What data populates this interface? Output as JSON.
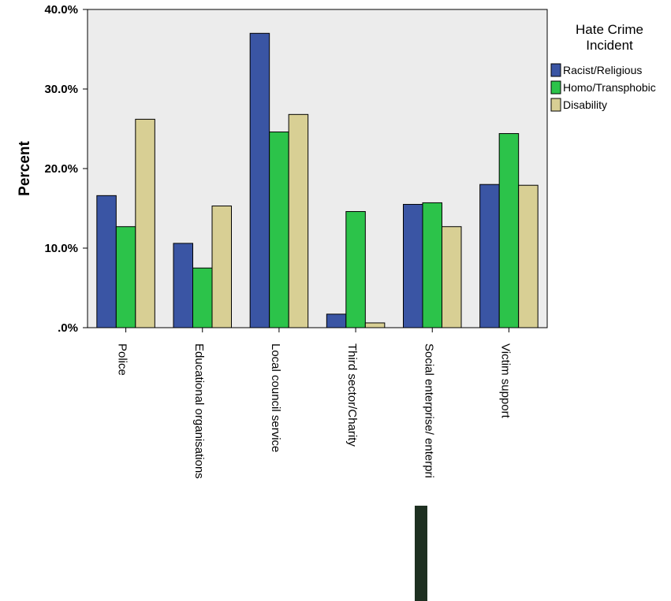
{
  "chart_data": {
    "type": "bar",
    "title": "",
    "xlabel": "",
    "ylabel": "Percent",
    "ylim": [
      0,
      40
    ],
    "y_ticks": [
      0,
      10,
      20,
      30,
      40
    ],
    "y_tick_labels": [
      ".0%",
      "10.0%",
      "20.0%",
      "30.0%",
      "40.0%"
    ],
    "grid": false,
    "legend": {
      "title_lines": [
        "Hate Crime",
        "Incident"
      ],
      "placement": "right"
    },
    "categories": [
      "Police",
      "Educational organisations",
      "Local council service",
      "Third sector/Charity",
      "Social enterprise/ enterpri",
      "Victim support"
    ],
    "series": [
      {
        "name": "Racist/Religious",
        "color": "#3a55a4",
        "values": [
          16.6,
          10.6,
          37.0,
          1.7,
          15.5,
          18.0
        ]
      },
      {
        "name": "Homo/Transphobic",
        "color": "#2cc34a",
        "values": [
          12.7,
          7.5,
          24.6,
          14.6,
          15.7,
          24.4
        ]
      },
      {
        "name": "Disability",
        "color": "#d8cf94",
        "values": [
          26.2,
          15.3,
          26.8,
          0.6,
          12.7,
          17.9
        ]
      }
    ],
    "plot_background": "#ececec"
  }
}
